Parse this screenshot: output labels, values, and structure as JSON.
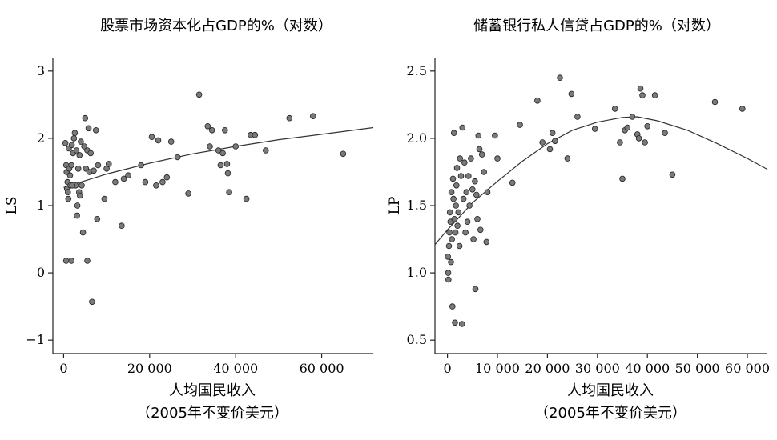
{
  "chart_data": [
    {
      "type": "scatter",
      "title": "股票市场资本化占GDP的%（对数）",
      "ylabel": "LS",
      "xlabel_line1": "人均国民收入",
      "xlabel_line2": "（2005年不变价美元）",
      "xlim": [
        -2500,
        72000
      ],
      "ylim": [
        -1.2,
        3.2
      ],
      "xticks": [
        0,
        20000,
        40000,
        60000
      ],
      "xtick_labels": [
        "0",
        "20 000",
        "40 000",
        "60 000"
      ],
      "yticks": [
        -1,
        0,
        1,
        2,
        3
      ],
      "ytick_labels": [
        "−1",
        "0",
        "1",
        "2",
        "3"
      ],
      "fit_curve": {
        "x": [
          0,
          10000,
          20000,
          30000,
          40000,
          50000,
          60000,
          72000
        ],
        "y": [
          1.27,
          1.47,
          1.63,
          1.77,
          1.88,
          1.98,
          2.06,
          2.16
        ]
      },
      "points": [
        {
          "x": 400,
          "y": 1.93
        },
        {
          "x": 600,
          "y": 1.6
        },
        {
          "x": 700,
          "y": 1.5
        },
        {
          "x": 900,
          "y": 1.35
        },
        {
          "x": 800,
          "y": 1.25
        },
        {
          "x": 1000,
          "y": 1.2
        },
        {
          "x": 1100,
          "y": 1.1
        },
        {
          "x": 1200,
          "y": 1.85
        },
        {
          "x": 1300,
          "y": 1.55
        },
        {
          "x": 1500,
          "y": 1.45
        },
        {
          "x": 1600,
          "y": 1.3
        },
        {
          "x": 1800,
          "y": 1.6
        },
        {
          "x": 1900,
          "y": 1.9
        },
        {
          "x": 2200,
          "y": 1.78
        },
        {
          "x": 2400,
          "y": 2.0
        },
        {
          "x": 2600,
          "y": 2.08
        },
        {
          "x": 2800,
          "y": 1.3
        },
        {
          "x": 3000,
          "y": 1.82
        },
        {
          "x": 3200,
          "y": 1.0
        },
        {
          "x": 3400,
          "y": 1.55
        },
        {
          "x": 3600,
          "y": 1.2
        },
        {
          "x": 3700,
          "y": 1.75
        },
        {
          "x": 4000,
          "y": 1.95
        },
        {
          "x": 4200,
          "y": 1.3
        },
        {
          "x": 4500,
          "y": 0.6
        },
        {
          "x": 4800,
          "y": 1.88
        },
        {
          "x": 5000,
          "y": 2.3
        },
        {
          "x": 5200,
          "y": 1.55
        },
        {
          "x": 5500,
          "y": 1.82
        },
        {
          "x": 5800,
          "y": 2.15
        },
        {
          "x": 6000,
          "y": 1.5
        },
        {
          "x": 6300,
          "y": 1.78
        },
        {
          "x": 6600,
          "y": -0.43
        },
        {
          "x": 7000,
          "y": 1.52
        },
        {
          "x": 7500,
          "y": 2.12
        },
        {
          "x": 7800,
          "y": 0.8
        },
        {
          "x": 8000,
          "y": 1.6
        },
        {
          "x": 9500,
          "y": 1.1
        },
        {
          "x": 10000,
          "y": 1.55
        },
        {
          "x": 10500,
          "y": 1.62
        },
        {
          "x": 12000,
          "y": 1.35
        },
        {
          "x": 13500,
          "y": 0.7
        },
        {
          "x": 14000,
          "y": 1.4
        },
        {
          "x": 15000,
          "y": 1.45
        },
        {
          "x": 18000,
          "y": 1.6
        },
        {
          "x": 19000,
          "y": 1.35
        },
        {
          "x": 20500,
          "y": 2.02
        },
        {
          "x": 21500,
          "y": 1.3
        },
        {
          "x": 22000,
          "y": 1.97
        },
        {
          "x": 23000,
          "y": 1.35
        },
        {
          "x": 24000,
          "y": 1.42
        },
        {
          "x": 25000,
          "y": 1.95
        },
        {
          "x": 26500,
          "y": 1.72
        },
        {
          "x": 29000,
          "y": 1.18
        },
        {
          "x": 31500,
          "y": 2.65
        },
        {
          "x": 33500,
          "y": 2.18
        },
        {
          "x": 34500,
          "y": 2.12
        },
        {
          "x": 34000,
          "y": 1.88
        },
        {
          "x": 36000,
          "y": 1.82
        },
        {
          "x": 36500,
          "y": 1.6
        },
        {
          "x": 37000,
          "y": 1.78
        },
        {
          "x": 37500,
          "y": 2.12
        },
        {
          "x": 38000,
          "y": 1.62
        },
        {
          "x": 38200,
          "y": 1.48
        },
        {
          "x": 38500,
          "y": 1.2
        },
        {
          "x": 40000,
          "y": 1.88
        },
        {
          "x": 42500,
          "y": 1.1
        },
        {
          "x": 43500,
          "y": 2.05
        },
        {
          "x": 44500,
          "y": 2.05
        },
        {
          "x": 47000,
          "y": 1.82
        },
        {
          "x": 52500,
          "y": 2.3
        },
        {
          "x": 58000,
          "y": 2.33
        },
        {
          "x": 65000,
          "y": 1.77
        },
        {
          "x": 600,
          "y": 0.18
        },
        {
          "x": 1800,
          "y": 0.18
        },
        {
          "x": 5500,
          "y": 0.18
        },
        {
          "x": 3100,
          "y": 0.85
        },
        {
          "x": 3800,
          "y": 1.15
        },
        {
          "x": 2000,
          "y": 1.3
        }
      ]
    },
    {
      "type": "scatter",
      "title": "储蓄银行私人信贷占GDP的%（对数）",
      "ylabel": "LP",
      "xlabel_line1": "人均国民收入",
      "xlabel_line2": "（2005年不变价美元）",
      "xlim": [
        -2500,
        64000
      ],
      "ylim": [
        0.4,
        2.6
      ],
      "xticks": [
        0,
        10000,
        20000,
        30000,
        40000,
        50000,
        60000
      ],
      "xtick_labels": [
        "0",
        "10 000",
        "20 000",
        "30 000",
        "40 000",
        "50 000",
        "60 000"
      ],
      "yticks": [
        0.5,
        1.0,
        1.5,
        2.0,
        2.5
      ],
      "ytick_labels": [
        "0.5",
        "1.0",
        "1.5",
        "2.0",
        "2.5"
      ],
      "fit_curve": {
        "x": [
          -2500,
          0,
          5000,
          10000,
          15000,
          20000,
          25000,
          30000,
          35000,
          38000,
          42000,
          48000,
          54000,
          60000,
          64000
        ],
        "y": [
          1.21,
          1.32,
          1.52,
          1.68,
          1.83,
          1.96,
          2.06,
          2.12,
          2.155,
          2.16,
          2.13,
          2.06,
          1.96,
          1.85,
          1.77
        ]
      },
      "points": [
        {
          "x": 100,
          "y": 1.12
        },
        {
          "x": 150,
          "y": 1.0
        },
        {
          "x": 200,
          "y": 0.95
        },
        {
          "x": 300,
          "y": 1.2
        },
        {
          "x": 400,
          "y": 1.3
        },
        {
          "x": 500,
          "y": 1.45
        },
        {
          "x": 600,
          "y": 1.38
        },
        {
          "x": 700,
          "y": 1.08
        },
        {
          "x": 800,
          "y": 1.6
        },
        {
          "x": 900,
          "y": 1.25
        },
        {
          "x": 1000,
          "y": 0.75
        },
        {
          "x": 1100,
          "y": 1.7
        },
        {
          "x": 1200,
          "y": 1.55
        },
        {
          "x": 1300,
          "y": 2.04
        },
        {
          "x": 1400,
          "y": 1.4
        },
        {
          "x": 1500,
          "y": 0.63
        },
        {
          "x": 1600,
          "y": 1.3
        },
        {
          "x": 1700,
          "y": 1.5
        },
        {
          "x": 1800,
          "y": 1.65
        },
        {
          "x": 1900,
          "y": 1.78
        },
        {
          "x": 2000,
          "y": 1.35
        },
        {
          "x": 2200,
          "y": 1.45
        },
        {
          "x": 2400,
          "y": 1.2
        },
        {
          "x": 2500,
          "y": 1.85
        },
        {
          "x": 2700,
          "y": 1.72
        },
        {
          "x": 2900,
          "y": 0.62
        },
        {
          "x": 3000,
          "y": 2.08
        },
        {
          "x": 3200,
          "y": 1.55
        },
        {
          "x": 3400,
          "y": 1.82
        },
        {
          "x": 3600,
          "y": 1.3
        },
        {
          "x": 3800,
          "y": 1.6
        },
        {
          "x": 4000,
          "y": 1.38
        },
        {
          "x": 4200,
          "y": 1.72
        },
        {
          "x": 4400,
          "y": 1.5
        },
        {
          "x": 4700,
          "y": 1.85
        },
        {
          "x": 5000,
          "y": 1.62
        },
        {
          "x": 5200,
          "y": 1.25
        },
        {
          "x": 5500,
          "y": 1.68
        },
        {
          "x": 5600,
          "y": 0.88
        },
        {
          "x": 5800,
          "y": 1.58
        },
        {
          "x": 6000,
          "y": 1.4
        },
        {
          "x": 6200,
          "y": 2.02
        },
        {
          "x": 6400,
          "y": 1.92
        },
        {
          "x": 6600,
          "y": 1.32
        },
        {
          "x": 6900,
          "y": 1.88
        },
        {
          "x": 7300,
          "y": 1.75
        },
        {
          "x": 7800,
          "y": 1.23
        },
        {
          "x": 8000,
          "y": 1.6
        },
        {
          "x": 9500,
          "y": 2.02
        },
        {
          "x": 10000,
          "y": 1.85
        },
        {
          "x": 13000,
          "y": 1.67
        },
        {
          "x": 14500,
          "y": 2.1
        },
        {
          "x": 18000,
          "y": 2.28
        },
        {
          "x": 19000,
          "y": 1.97
        },
        {
          "x": 20500,
          "y": 1.92
        },
        {
          "x": 21000,
          "y": 2.04
        },
        {
          "x": 21500,
          "y": 1.98
        },
        {
          "x": 22500,
          "y": 2.45
        },
        {
          "x": 24000,
          "y": 1.85
        },
        {
          "x": 24800,
          "y": 2.33
        },
        {
          "x": 26000,
          "y": 2.16
        },
        {
          "x": 29500,
          "y": 2.07
        },
        {
          "x": 33500,
          "y": 2.22
        },
        {
          "x": 34500,
          "y": 1.97
        },
        {
          "x": 35000,
          "y": 1.7
        },
        {
          "x": 35500,
          "y": 2.06
        },
        {
          "x": 36000,
          "y": 2.08
        },
        {
          "x": 37000,
          "y": 2.16
        },
        {
          "x": 38000,
          "y": 2.03
        },
        {
          "x": 38300,
          "y": 2.0
        },
        {
          "x": 38600,
          "y": 2.37
        },
        {
          "x": 39000,
          "y": 2.32
        },
        {
          "x": 39500,
          "y": 1.97
        },
        {
          "x": 40000,
          "y": 2.09
        },
        {
          "x": 41500,
          "y": 2.32
        },
        {
          "x": 43500,
          "y": 2.04
        },
        {
          "x": 45000,
          "y": 1.73
        },
        {
          "x": 53500,
          "y": 2.27
        },
        {
          "x": 59000,
          "y": 2.22
        }
      ]
    }
  ]
}
